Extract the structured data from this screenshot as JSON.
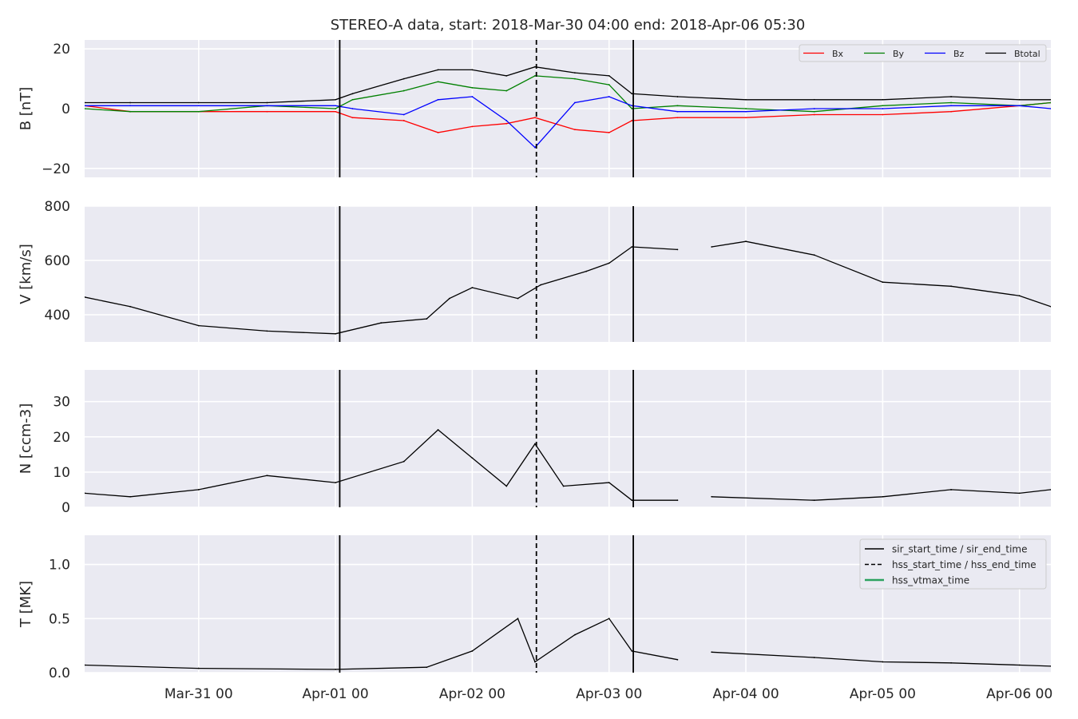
{
  "figure": {
    "title": "STEREO-A data, start: 2018-Mar-30 04:00  end: 2018-Apr-06 05:30",
    "colors": {
      "panel_bg": "#eaeaf2",
      "grid": "#ffffff",
      "text": "#262626",
      "Bx": "#ff0000",
      "By": "#008000",
      "Bz": "#0000ff",
      "Btotal": "#000000",
      "line": "#000000",
      "hss_vtmax": "#2ca25f"
    },
    "x_tick_labels": [
      "Mar-31 00",
      "Apr-01 00",
      "Apr-02 00",
      "Apr-03 00",
      "Apr-04 00",
      "Apr-05 00",
      "Apr-06 00"
    ]
  },
  "chart_data": [
    {
      "type": "line",
      "ylabel": "B [nT]",
      "xlim": [
        "2018-03-30T04:00",
        "2018-04-06T05:30"
      ],
      "ylim": [
        -23,
        23
      ],
      "yticks": [
        -20,
        0,
        20
      ],
      "ytick_labels": [
        "−20",
        "0",
        "20"
      ],
      "grid": true,
      "legend": {
        "placement": "top-right",
        "entries": [
          {
            "label": "Bx",
            "color": "#ff0000",
            "style": "solid"
          },
          {
            "label": "By",
            "color": "#008000",
            "style": "solid"
          },
          {
            "label": "Bz",
            "color": "#0000ff",
            "style": "solid"
          },
          {
            "label": "Btotal",
            "color": "#000000",
            "style": "solid"
          }
        ]
      },
      "x": [
        "2018-03-30T04:00",
        "2018-03-30T12:00",
        "2018-03-31T00:00",
        "2018-03-31T12:00",
        "2018-04-01T00:00",
        "2018-04-01T03:00",
        "2018-04-01T12:00",
        "2018-04-01T18:00",
        "2018-04-02T00:00",
        "2018-04-02T06:00",
        "2018-04-02T11:00",
        "2018-04-02T18:00",
        "2018-04-03T00:00",
        "2018-04-03T04:00",
        "2018-04-03T12:00",
        "2018-04-04T00:00",
        "2018-04-04T12:00",
        "2018-04-05T00:00",
        "2018-04-05T12:00",
        "2018-04-06T00:00",
        "2018-04-06T05:30"
      ],
      "series": [
        {
          "name": "Bx",
          "color": "#ff0000",
          "values": [
            1,
            -1,
            -1,
            -1,
            -1,
            -3,
            -4,
            -8,
            -6,
            -5,
            -3,
            -7,
            -8,
            -4,
            -3,
            -3,
            -2,
            -2,
            -1,
            1,
            2
          ]
        },
        {
          "name": "By",
          "color": "#008000",
          "values": [
            0,
            -1,
            -1,
            1,
            0,
            3,
            6,
            9,
            7,
            6,
            11,
            10,
            8,
            0,
            1,
            0,
            -1,
            1,
            2,
            1,
            2
          ]
        },
        {
          "name": "Bz",
          "color": "#0000ff",
          "values": [
            1,
            1,
            1,
            1,
            1,
            0,
            -2,
            3,
            4,
            -4,
            -13,
            2,
            4,
            1,
            -1,
            -1,
            0,
            0,
            1,
            1,
            0
          ]
        },
        {
          "name": "Btotal",
          "color": "#000000",
          "values": [
            2,
            2,
            2,
            2,
            3,
            5,
            10,
            13,
            13,
            11,
            14,
            12,
            11,
            5,
            4,
            3,
            3,
            3,
            4,
            3,
            3
          ]
        }
      ]
    },
    {
      "type": "line",
      "ylabel": "V [km/s]",
      "xlim": [
        "2018-03-30T04:00",
        "2018-04-06T05:30"
      ],
      "ylim": [
        300,
        800
      ],
      "yticks": [
        400,
        600,
        800
      ],
      "ytick_labels": [
        "400",
        "600",
        "800"
      ],
      "grid": true,
      "x": [
        "2018-03-30T04:00",
        "2018-03-30T12:00",
        "2018-03-31T00:00",
        "2018-03-31T12:00",
        "2018-04-01T00:00",
        "2018-04-01T08:00",
        "2018-04-01T16:00",
        "2018-04-01T20:00",
        "2018-04-02T00:00",
        "2018-04-02T08:00",
        "2018-04-02T12:00",
        "2018-04-02T20:00",
        "2018-04-03T00:00",
        "2018-04-03T04:00",
        "2018-04-03T12:00",
        "2018-04-03T16:00",
        "2018-04-03T18:00",
        "2018-04-04T00:00",
        "2018-04-04T12:00",
        "2018-04-05T00:00",
        "2018-04-05T12:00",
        "2018-04-06T00:00",
        "2018-04-06T05:30"
      ],
      "series": [
        {
          "name": "",
          "color": "#000000",
          "values": [
            465,
            430,
            360,
            340,
            330,
            370,
            385,
            460,
            500,
            460,
            510,
            560,
            590,
            650,
            640,
            null,
            650,
            670,
            620,
            520,
            505,
            470,
            430
          ]
        }
      ]
    },
    {
      "type": "line",
      "ylabel": "N [ccm-3]",
      "xlim": [
        "2018-03-30T04:00",
        "2018-04-06T05:30"
      ],
      "ylim": [
        0,
        39
      ],
      "yticks": [
        0,
        10,
        20,
        30
      ],
      "ytick_labels": [
        "0",
        "10",
        "20",
        "30"
      ],
      "grid": true,
      "x": [
        "2018-03-30T04:00",
        "2018-03-30T12:00",
        "2018-03-31T00:00",
        "2018-03-31T12:00",
        "2018-04-01T00:00",
        "2018-04-01T12:00",
        "2018-04-01T18:00",
        "2018-04-02T00:00",
        "2018-04-02T06:00",
        "2018-04-02T11:00",
        "2018-04-02T16:00",
        "2018-04-03T00:00",
        "2018-04-03T04:00",
        "2018-04-03T12:00",
        "2018-04-03T16:00",
        "2018-04-03T18:00",
        "2018-04-04T12:00",
        "2018-04-05T00:00",
        "2018-04-05T12:00",
        "2018-04-06T00:00",
        "2018-04-06T05:30"
      ],
      "series": [
        {
          "name": "",
          "color": "#000000",
          "values": [
            4,
            3,
            5,
            9,
            7,
            13,
            22,
            14,
            6,
            18,
            6,
            7,
            2,
            2,
            null,
            3,
            2,
            3,
            5,
            4,
            5
          ]
        }
      ]
    },
    {
      "type": "line",
      "ylabel": "T [MK]",
      "xlim": [
        "2018-03-30T04:00",
        "2018-04-06T05:30"
      ],
      "ylim": [
        0,
        1.27
      ],
      "yticks": [
        0.0,
        0.5,
        1.0
      ],
      "ytick_labels": [
        "0.0",
        "0.5",
        "1.0"
      ],
      "grid": true,
      "legend": {
        "placement": "top-right",
        "entries": [
          {
            "label": "sir_start_time / sir_end_time",
            "color": "#000000",
            "style": "solid"
          },
          {
            "label": "hss_start_time / hss_end_time",
            "color": "#000000",
            "style": "dashed"
          },
          {
            "label": "hss_vtmax_time",
            "color": "#2ca25f",
            "style": "solid"
          }
        ]
      },
      "x": [
        "2018-03-30T04:00",
        "2018-03-31T00:00",
        "2018-04-01T00:00",
        "2018-04-01T16:00",
        "2018-04-02T00:00",
        "2018-04-02T08:00",
        "2018-04-02T11:00",
        "2018-04-02T18:00",
        "2018-04-03T00:00",
        "2018-04-03T04:00",
        "2018-04-03T12:00",
        "2018-04-03T16:00",
        "2018-04-03T18:00",
        "2018-04-04T12:00",
        "2018-04-05T00:00",
        "2018-04-05T12:00",
        "2018-04-06T00:00",
        "2018-04-06T05:30"
      ],
      "series": [
        {
          "name": "",
          "color": "#000000",
          "values": [
            0.07,
            0.04,
            0.03,
            0.05,
            0.2,
            0.5,
            0.1,
            0.35,
            0.5,
            0.2,
            0.12,
            null,
            0.19,
            0.14,
            0.1,
            0.09,
            0.07,
            0.06
          ]
        }
      ]
    }
  ],
  "event_markers": {
    "sir_start_time": "2018-04-01T00:45",
    "sir_end_time": "2018-04-03T04:15",
    "hss_start_time": "2018-04-02T11:15"
  }
}
